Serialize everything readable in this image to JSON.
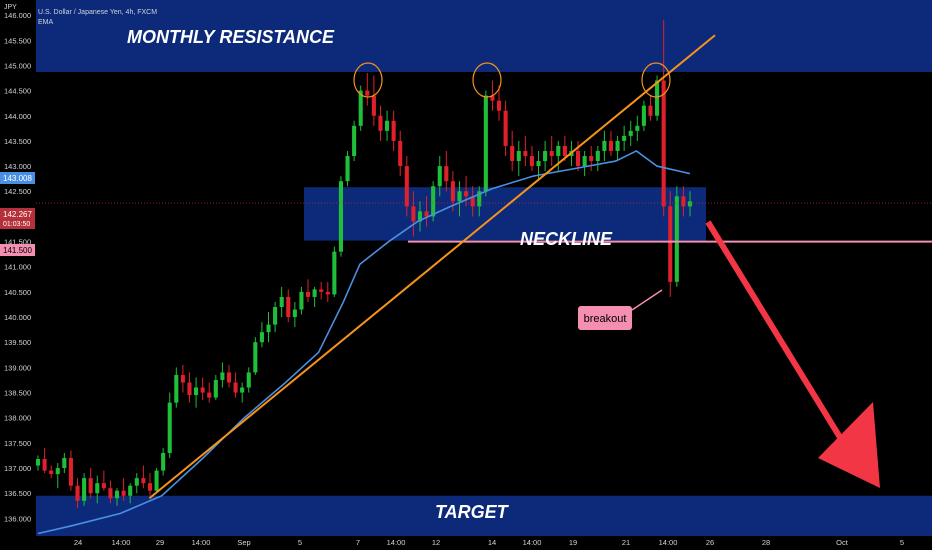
{
  "header": {
    "symbol_title": "U.S. Dollar / Japanese Yen, 4h, FXCM",
    "indicator": "EMA",
    "currency": "JPY"
  },
  "price_badges": {
    "ema": "143.008",
    "last": "142.267",
    "countdown": "01:03:50",
    "neckline": "141.500"
  },
  "annotations": {
    "monthly_resistance": "MONTHLY RESISTANCE",
    "neckline": "NECKLINE",
    "target": "TARGET",
    "breakout": "breakout"
  },
  "colors": {
    "background": "#000000",
    "zone": "#0d2a7a",
    "bull": "#1fbf3a",
    "bear": "#e0202c",
    "ema": "#4a90e2",
    "trendline": "#f7931a",
    "neckline_line": "#f48fb1",
    "arrow": "#f23645",
    "last_line": "#b5303a"
  },
  "chart_data": {
    "type": "candlestick",
    "instrument": "U.S. Dollar / Japanese Yen",
    "timeframe": "4h",
    "y_ticks": [
      "146.000",
      "145.500",
      "145.000",
      "144.500",
      "144.000",
      "143.500",
      "143.000",
      "142.500",
      "142.000",
      "141.500",
      "141.000",
      "140.500",
      "140.000",
      "139.500",
      "139.000",
      "138.500",
      "138.000",
      "137.500",
      "137.000",
      "136.500",
      "136.000"
    ],
    "ylim": [
      135.65,
      146.3
    ],
    "x_ticks": [
      "24",
      "14:00",
      "29",
      "14:00",
      "Sep",
      "5",
      "7",
      "14:00",
      "12",
      "14",
      "14:00",
      "19",
      "21",
      "14:00",
      "26",
      "28",
      "Oct",
      "5"
    ],
    "levels": {
      "monthly_resistance_zone": [
        144.87,
        146.3
      ],
      "neckline_zone": [
        141.52,
        142.58
      ],
      "neckline": 141.5,
      "target_zone": [
        135.65,
        136.45
      ],
      "last_price": 142.267,
      "ema_last": 143.008
    },
    "candle_points": [
      [
        137.05,
        137.25,
        136.95,
        137.18
      ],
      [
        137.18,
        137.4,
        136.9,
        136.95
      ],
      [
        136.95,
        137.05,
        136.8,
        136.88
      ],
      [
        136.88,
        137.1,
        136.6,
        137.0
      ],
      [
        137.0,
        137.3,
        136.9,
        137.2
      ],
      [
        137.2,
        137.35,
        136.55,
        136.65
      ],
      [
        136.65,
        136.8,
        136.2,
        136.35
      ],
      [
        136.35,
        136.9,
        136.25,
        136.8
      ],
      [
        136.8,
        137.0,
        136.4,
        136.5
      ],
      [
        136.5,
        136.85,
        136.3,
        136.7
      ],
      [
        136.7,
        136.95,
        136.55,
        136.6
      ],
      [
        136.6,
        136.75,
        136.3,
        136.4
      ],
      [
        136.4,
        136.6,
        136.25,
        136.55
      ],
      [
        136.55,
        136.8,
        136.35,
        136.45
      ],
      [
        136.45,
        136.7,
        136.3,
        136.65
      ],
      [
        136.65,
        136.9,
        136.5,
        136.8
      ],
      [
        136.8,
        137.05,
        136.6,
        136.7
      ],
      [
        136.7,
        136.9,
        136.45,
        136.55
      ],
      [
        136.55,
        137.0,
        136.5,
        136.95
      ],
      [
        136.95,
        137.4,
        136.85,
        137.3
      ],
      [
        137.3,
        138.5,
        137.2,
        138.3
      ],
      [
        138.3,
        139.0,
        138.2,
        138.85
      ],
      [
        138.85,
        139.05,
        138.5,
        138.7
      ],
      [
        138.7,
        138.9,
        138.3,
        138.45
      ],
      [
        138.45,
        138.8,
        138.2,
        138.6
      ],
      [
        138.6,
        138.8,
        138.35,
        138.5
      ],
      [
        138.5,
        138.7,
        138.3,
        138.4
      ],
      [
        138.4,
        138.85,
        138.35,
        138.75
      ],
      [
        138.75,
        139.1,
        138.6,
        138.9
      ],
      [
        138.9,
        139.05,
        138.6,
        138.7
      ],
      [
        138.7,
        138.9,
        138.4,
        138.5
      ],
      [
        138.5,
        138.7,
        138.3,
        138.6
      ],
      [
        138.6,
        139.0,
        138.5,
        138.9
      ],
      [
        138.9,
        139.6,
        138.85,
        139.5
      ],
      [
        139.5,
        139.9,
        139.4,
        139.7
      ],
      [
        139.7,
        140.1,
        139.5,
        139.85
      ],
      [
        139.85,
        140.3,
        139.7,
        140.2
      ],
      [
        140.2,
        140.6,
        140.0,
        140.4
      ],
      [
        140.4,
        140.55,
        139.9,
        140.0
      ],
      [
        140.0,
        140.3,
        139.8,
        140.15
      ],
      [
        140.15,
        140.6,
        140.05,
        140.5
      ],
      [
        140.5,
        140.75,
        140.3,
        140.4
      ],
      [
        140.4,
        140.6,
        140.2,
        140.55
      ],
      [
        140.55,
        140.7,
        140.35,
        140.5
      ],
      [
        140.5,
        140.7,
        140.3,
        140.45
      ],
      [
        140.45,
        141.4,
        140.4,
        141.3
      ],
      [
        141.3,
        142.8,
        141.2,
        142.7
      ],
      [
        142.7,
        143.3,
        142.6,
        143.2
      ],
      [
        143.2,
        143.9,
        143.1,
        143.8
      ],
      [
        143.8,
        144.6,
        143.7,
        144.5
      ],
      [
        144.5,
        144.85,
        144.2,
        144.4
      ],
      [
        144.4,
        144.8,
        143.8,
        144.0
      ],
      [
        144.0,
        144.2,
        143.5,
        143.7
      ],
      [
        143.7,
        144.1,
        143.5,
        143.9
      ],
      [
        143.9,
        144.1,
        143.3,
        143.5
      ],
      [
        143.5,
        143.7,
        142.8,
        143.0
      ],
      [
        143.0,
        143.2,
        142.0,
        142.2
      ],
      [
        142.2,
        142.5,
        141.6,
        141.9
      ],
      [
        141.9,
        142.3,
        141.7,
        142.1
      ],
      [
        142.1,
        142.4,
        141.8,
        142.0
      ],
      [
        142.0,
        142.7,
        141.9,
        142.6
      ],
      [
        142.6,
        143.2,
        142.4,
        143.0
      ],
      [
        143.0,
        143.3,
        142.5,
        142.7
      ],
      [
        142.7,
        142.9,
        142.1,
        142.3
      ],
      [
        142.3,
        142.7,
        142.0,
        142.5
      ],
      [
        142.5,
        142.8,
        142.2,
        142.4
      ],
      [
        142.4,
        142.6,
        142.0,
        142.2
      ],
      [
        142.2,
        142.6,
        142.0,
        142.5
      ],
      [
        142.5,
        144.5,
        142.4,
        144.4
      ],
      [
        144.4,
        144.7,
        144.1,
        144.3
      ],
      [
        144.3,
        144.6,
        143.9,
        144.1
      ],
      [
        144.1,
        144.3,
        143.2,
        143.4
      ],
      [
        143.4,
        143.7,
        142.9,
        143.1
      ],
      [
        143.1,
        143.5,
        142.8,
        143.3
      ],
      [
        143.3,
        143.6,
        143.0,
        143.2
      ],
      [
        143.2,
        143.4,
        142.9,
        143.0
      ],
      [
        143.0,
        143.3,
        142.7,
        143.1
      ],
      [
        143.1,
        143.5,
        142.9,
        143.3
      ],
      [
        143.3,
        143.6,
        143.0,
        143.2
      ],
      [
        143.2,
        143.5,
        142.9,
        143.4
      ],
      [
        143.4,
        143.6,
        143.1,
        143.2
      ],
      [
        143.2,
        143.5,
        143.0,
        143.3
      ],
      [
        143.3,
        143.5,
        142.9,
        143.0
      ],
      [
        143.0,
        143.3,
        142.8,
        143.2
      ],
      [
        143.2,
        143.4,
        142.9,
        143.1
      ],
      [
        143.1,
        143.4,
        142.9,
        143.3
      ],
      [
        143.3,
        143.7,
        143.1,
        143.5
      ],
      [
        143.5,
        143.7,
        143.2,
        143.3
      ],
      [
        143.3,
        143.6,
        143.1,
        143.5
      ],
      [
        143.5,
        143.8,
        143.3,
        143.6
      ],
      [
        143.6,
        143.9,
        143.4,
        143.7
      ],
      [
        143.7,
        144.0,
        143.5,
        143.8
      ],
      [
        143.8,
        144.3,
        143.7,
        144.2
      ],
      [
        144.2,
        144.4,
        143.9,
        144.0
      ],
      [
        144.0,
        144.8,
        143.9,
        144.7
      ],
      [
        144.7,
        145.9,
        142.0,
        142.2
      ],
      [
        142.2,
        142.5,
        140.4,
        140.7
      ],
      [
        140.7,
        142.6,
        140.6,
        142.4
      ],
      [
        142.4,
        142.6,
        142.0,
        142.2
      ],
      [
        142.2,
        142.5,
        142.0,
        142.3
      ]
    ],
    "ema_points": [
      [
        0,
        135.7
      ],
      [
        8,
        135.85
      ],
      [
        20,
        136.1
      ],
      [
        30,
        136.45
      ],
      [
        40,
        137.2
      ],
      [
        50,
        138.0
      ],
      [
        60,
        138.7
      ],
      [
        68,
        139.3
      ],
      [
        74,
        140.3
      ],
      [
        78,
        141.05
      ],
      [
        85,
        141.5
      ],
      [
        92,
        141.9
      ],
      [
        100,
        142.2
      ],
      [
        110,
        142.55
      ],
      [
        120,
        142.8
      ],
      [
        130,
        142.95
      ],
      [
        140,
        143.1
      ],
      [
        145,
        143.3
      ],
      [
        150,
        143.0
      ],
      [
        158,
        142.85
      ]
    ],
    "trendline": [
      [
        27,
        136.4
      ],
      [
        160,
        145.6
      ]
    ]
  }
}
